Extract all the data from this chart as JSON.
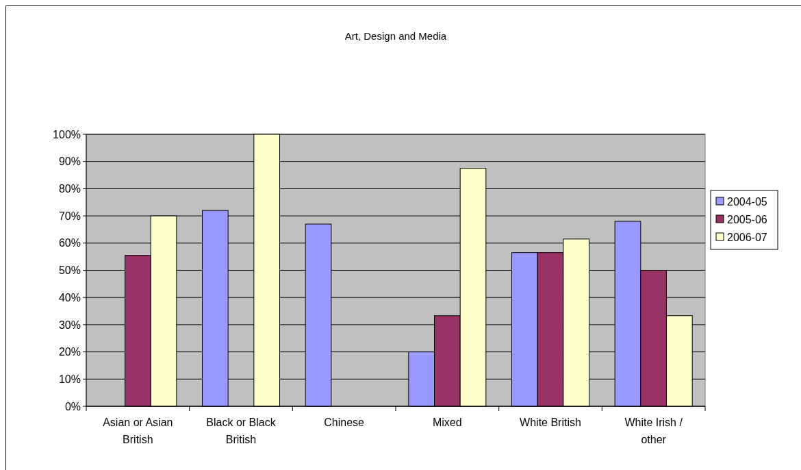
{
  "chart_data": {
    "type": "bar",
    "title": "Art, Design and Media",
    "categories": [
      "Asian or Asian British",
      "Black or Black British",
      "Chinese",
      "Mixed",
      "White British",
      "White Irish / other"
    ],
    "series": [
      {
        "name": "2004-05",
        "color": "#9999ff",
        "values": [
          null,
          72,
          67,
          20,
          56.5,
          68
        ]
      },
      {
        "name": "2005-06",
        "color": "#993366",
        "values": [
          55.5,
          null,
          null,
          33.3,
          56.5,
          50
        ]
      },
      {
        "name": "2006-07",
        "color": "#ffffcc",
        "values": [
          70,
          100,
          null,
          87.5,
          61.5,
          33.3
        ]
      }
    ],
    "ylim": [
      0,
      100
    ],
    "yticks": [
      {
        "value": 0,
        "label": "0%"
      },
      {
        "value": 10,
        "label": "10%"
      },
      {
        "value": 20,
        "label": "20%"
      },
      {
        "value": 30,
        "label": "30%"
      },
      {
        "value": 40,
        "label": "40%"
      },
      {
        "value": 50,
        "label": "50%"
      },
      {
        "value": 60,
        "label": "60%"
      },
      {
        "value": 70,
        "label": "70%"
      },
      {
        "value": 80,
        "label": "80%"
      },
      {
        "value": 90,
        "label": "90%"
      },
      {
        "value": 100,
        "label": "100%"
      }
    ],
    "grid": "y",
    "legend": "right"
  }
}
